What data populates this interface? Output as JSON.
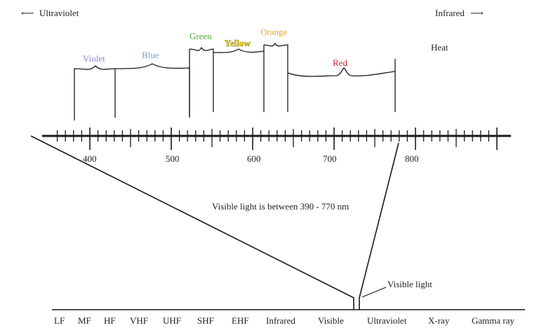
{
  "direction_labels": {
    "left": "Ultraviolet",
    "left_arrow": "⟵",
    "right": "Infrared",
    "right_arrow": "⟶"
  },
  "heat_label": "Heat",
  "colors": [
    {
      "name": "Violet",
      "color": "#8a86c6"
    },
    {
      "name": "Blue",
      "color": "#6f9fd0"
    },
    {
      "name": "Green",
      "color": "#5aa843"
    },
    {
      "name": "Yellow",
      "color": "#e8d000"
    },
    {
      "name": "Orange",
      "color": "#e2a530"
    },
    {
      "name": "Red",
      "color": "#d0252c"
    }
  ],
  "wavelength_scale": {
    "tick_labels": [
      "400",
      "500",
      "600",
      "700",
      "800"
    ]
  },
  "caption": "Visible light is between 390 - 770 nm",
  "visible_light_callout": "Visible light",
  "spectrum_bands": [
    "LF",
    "MF",
    "HF",
    "VHF",
    "UHF",
    "SHF",
    "EHF",
    "Infrared",
    "Visible",
    "Ultraviolet",
    "X-ray",
    "Gamma ray"
  ]
}
